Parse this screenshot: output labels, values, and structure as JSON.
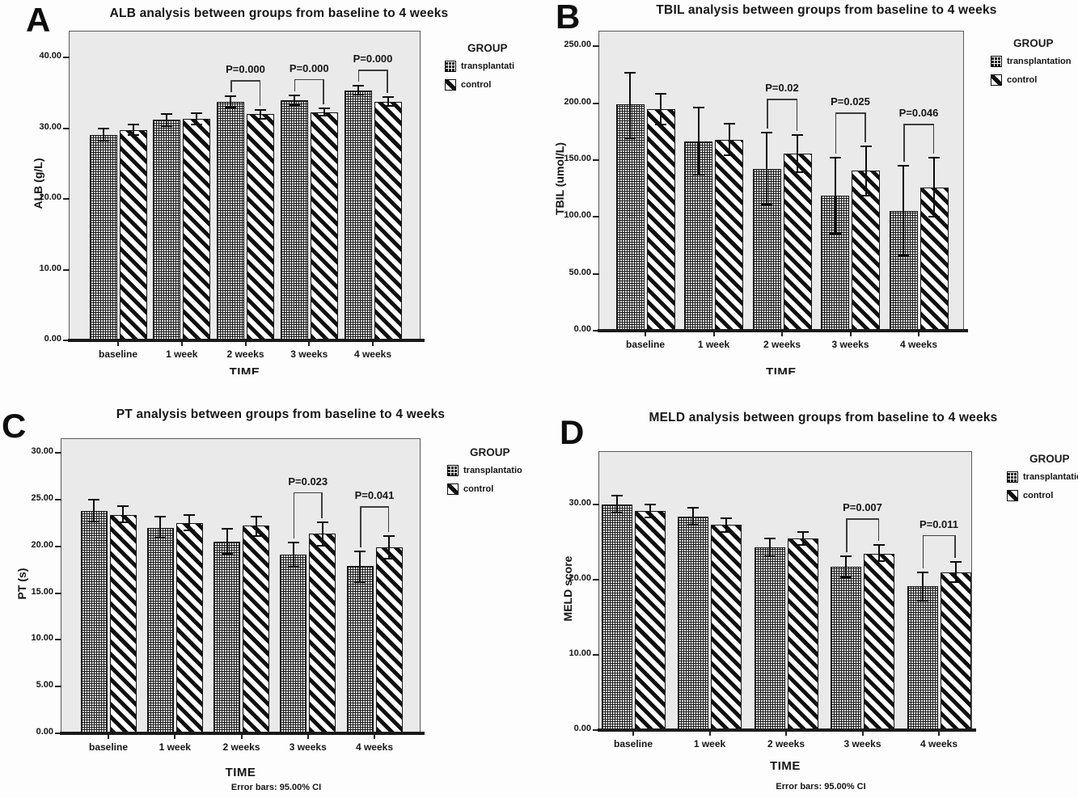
{
  "figure": {
    "x_axis_title": "TIME",
    "group_legend_title": "GROUP",
    "error_note": "Error bars: 95.00% CI"
  },
  "chart_data": [
    {
      "type": "bar",
      "panel": "A",
      "title": "ALB analysis between groups from baseline to 4 weeks",
      "ylabel": "ALB (g/L)",
      "xlabel": "TIME",
      "categories": [
        "baseline",
        "1 week",
        "2 weeks",
        "3 weeks",
        "4 weeks"
      ],
      "yticks": [
        0,
        10,
        20,
        30,
        40
      ],
      "ylim": [
        0,
        40
      ],
      "grid": false,
      "legend": {
        "title": "GROUP",
        "position": "right",
        "entries": [
          "transplantati",
          "control"
        ]
      },
      "series": [
        {
          "name": "transplantation",
          "pattern": "grid-hatch",
          "values": [
            29.1,
            31.2,
            33.8,
            34.0,
            35.4
          ],
          "ci": [
            [
              28.2,
              30.0
            ],
            [
              30.3,
              32.0
            ],
            [
              33.0,
              34.5
            ],
            [
              33.3,
              34.7
            ],
            [
              34.8,
              36.0
            ]
          ]
        },
        {
          "name": "control",
          "pattern": "diagonal-hatch",
          "values": [
            29.8,
            31.3,
            32.0,
            32.3,
            33.8
          ],
          "ci": [
            [
              29.0,
              30.6
            ],
            [
              30.5,
              32.1
            ],
            [
              31.4,
              32.6
            ],
            [
              31.8,
              32.8
            ],
            [
              33.2,
              34.4
            ]
          ]
        }
      ],
      "p_annotations": [
        {
          "category": "2 weeks",
          "label": "P=0.000"
        },
        {
          "category": "3 weeks",
          "label": "P=0.000"
        },
        {
          "category": "4 weeks",
          "label": "P=0.000"
        }
      ],
      "footnote": null
    },
    {
      "type": "bar",
      "panel": "B",
      "title": "TBIL analysis between groups from baseline to 4 weeks",
      "ylabel": "TBIL (umol/L)",
      "xlabel": "TIME",
      "categories": [
        "baseline",
        "1 week",
        "2 weeks",
        "3 weeks",
        "4 weeks"
      ],
      "yticks": [
        0,
        50,
        100,
        150,
        200,
        250
      ],
      "ylim": [
        0,
        250
      ],
      "grid": false,
      "legend": {
        "title": "GROUP",
        "position": "right",
        "entries": [
          "transplantation",
          "control"
        ]
      },
      "series": [
        {
          "name": "transplantation",
          "pattern": "grid-hatch",
          "values": [
            199,
            166,
            142,
            119,
            105
          ],
          "ci": [
            [
              169,
              227
            ],
            [
              137,
              196
            ],
            [
              111,
              174
            ],
            [
              85,
              152
            ],
            [
              66,
              145
            ]
          ]
        },
        {
          "name": "control",
          "pattern": "diagonal-hatch",
          "values": [
            195,
            168,
            156,
            141,
            126
          ],
          "ci": [
            [
              181,
              208
            ],
            [
              154,
              182
            ],
            [
              139,
              172
            ],
            [
              119,
              162
            ],
            [
              100,
              152
            ]
          ]
        }
      ],
      "p_annotations": [
        {
          "category": "2 weeks",
          "label": "P=0.02"
        },
        {
          "category": "3 weeks",
          "label": "P=0.025"
        },
        {
          "category": "4 weeks",
          "label": "P=0.046"
        }
      ],
      "footnote": null
    },
    {
      "type": "bar",
      "panel": "C",
      "title": "PT analysis between groups from baseline to 4 weeks",
      "ylabel": "PT (s)",
      "xlabel": "TIME",
      "categories": [
        "baseline",
        "1 week",
        "2 weeks",
        "3 weeks",
        "4 weeks"
      ],
      "yticks": [
        0,
        5,
        10,
        15,
        20,
        25,
        30
      ],
      "ylim": [
        0,
        30
      ],
      "grid": false,
      "legend": {
        "title": "GROUP",
        "position": "right",
        "entries": [
          "transplantatio",
          "control"
        ]
      },
      "series": [
        {
          "name": "transplantation",
          "pattern": "grid-hatch",
          "values": [
            23.8,
            22.0,
            20.5,
            19.1,
            17.9
          ],
          "ci": [
            [
              22.7,
              25.0
            ],
            [
              20.9,
              23.2
            ],
            [
              19.2,
              21.9
            ],
            [
              17.8,
              20.4
            ],
            [
              16.2,
              19.5
            ]
          ]
        },
        {
          "name": "control",
          "pattern": "diagonal-hatch",
          "values": [
            23.4,
            22.5,
            22.2,
            21.4,
            19.9
          ],
          "ci": [
            [
              22.6,
              24.3
            ],
            [
              21.7,
              23.4
            ],
            [
              21.1,
              23.2
            ],
            [
              20.1,
              22.6
            ],
            [
              18.7,
              21.1
            ]
          ]
        }
      ],
      "p_annotations": [
        {
          "category": "3 weeks",
          "label": "P=0.023"
        },
        {
          "category": "4 weeks",
          "label": "P=0.041"
        }
      ],
      "footnote": "Error bars: 95.00% CI"
    },
    {
      "type": "bar",
      "panel": "D",
      "title": "MELD analysis between groups from baseline to 4 weeks",
      "ylabel": "MELD score",
      "xlabel": "TIME",
      "categories": [
        "baseline",
        "1 week",
        "2 weeks",
        "3 weeks",
        "4 weeks"
      ],
      "yticks": [
        0,
        10,
        20,
        30
      ],
      "ylim": [
        0,
        30
      ],
      "grid": false,
      "legend": {
        "title": "GROUP",
        "position": "right",
        "entries": [
          "transplantation",
          "control"
        ]
      },
      "series": [
        {
          "name": "transplantation",
          "pattern": "grid-hatch",
          "values": [
            30.0,
            28.4,
            24.3,
            21.7,
            19.1
          ],
          "ci": [
            [
              28.9,
              31.2
            ],
            [
              27.3,
              29.6
            ],
            [
              23.1,
              25.5
            ],
            [
              20.3,
              23.1
            ],
            [
              17.2,
              21.0
            ]
          ]
        },
        {
          "name": "control",
          "pattern": "diagonal-hatch",
          "values": [
            29.2,
            27.3,
            25.5,
            23.5,
            21.0
          ],
          "ci": [
            [
              28.3,
              30.0
            ],
            [
              26.4,
              28.2
            ],
            [
              24.6,
              26.4
            ],
            [
              22.5,
              24.6
            ],
            [
              19.7,
              22.4
            ]
          ]
        }
      ],
      "p_annotations": [
        {
          "category": "3 weeks",
          "label": "P=0.007"
        },
        {
          "category": "4 weeks",
          "label": "P=0.011"
        }
      ],
      "footnote": "Error bars: 95.00% CI"
    }
  ]
}
